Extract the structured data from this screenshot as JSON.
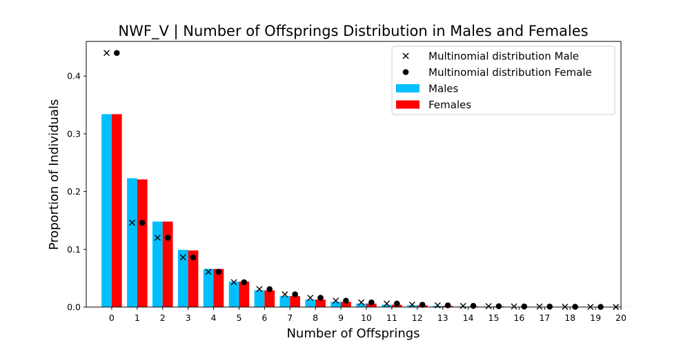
{
  "chart_data": {
    "type": "bar",
    "title": "NWF_V | Number of Offsprings Distribution in Males and Females",
    "xlabel": "Number of Offsprings",
    "ylabel": "Proportion of Individuals",
    "x_ticks": [
      "0",
      "1",
      "2",
      "3",
      "4",
      "5",
      "6",
      "7",
      "8",
      "9",
      "10",
      "11",
      "12",
      "13",
      "14",
      "15",
      "16",
      "17",
      "18",
      "19",
      "20"
    ],
    "y_ticks": [
      "0.0",
      "0.1",
      "0.2",
      "0.3",
      "0.4"
    ],
    "xlim": [
      -1,
      20
    ],
    "ylim": [
      0,
      0.46
    ],
    "legend_position": "upper-right",
    "series": [
      {
        "name": "Males",
        "kind": "bar",
        "color": "#00bfff",
        "x": [
          0,
          1,
          2,
          3,
          4,
          5,
          6,
          7,
          8,
          9,
          10,
          11,
          12,
          13,
          14,
          15,
          16,
          17,
          18,
          19,
          20
        ],
        "values": [
          0.334,
          0.223,
          0.148,
          0.099,
          0.066,
          0.044,
          0.029,
          0.019,
          0.013,
          0.009,
          0.006,
          0.004,
          0.003,
          0.002,
          0.001,
          0.001,
          0.0005,
          0.0004,
          0.0003,
          0.0002,
          0.0001
        ]
      },
      {
        "name": "Females",
        "kind": "bar",
        "color": "#ff0000",
        "x": [
          0,
          1,
          2,
          3,
          4,
          5,
          6,
          7,
          8,
          9,
          10,
          11,
          12,
          13,
          14,
          15,
          16,
          17,
          18,
          19,
          20
        ],
        "values": [
          0.334,
          0.221,
          0.148,
          0.098,
          0.066,
          0.044,
          0.029,
          0.019,
          0.013,
          0.009,
          0.006,
          0.004,
          0.003,
          0.002,
          0.001,
          0.001,
          0.0005,
          0.0004,
          0.0003,
          0.0002,
          0.0001
        ]
      },
      {
        "name": "Multinomial distribution Male",
        "kind": "marker-x",
        "color": "#000000",
        "x": [
          0,
          1,
          2,
          3,
          4,
          5,
          6,
          7,
          8,
          9,
          10,
          11,
          12,
          13,
          14,
          15,
          16,
          17,
          18,
          19,
          20
        ],
        "values": [
          0.44,
          0.146,
          0.12,
          0.086,
          0.061,
          0.043,
          0.031,
          0.022,
          0.016,
          0.011,
          0.008,
          0.006,
          0.004,
          0.003,
          0.002,
          0.0015,
          0.001,
          0.0008,
          0.0005,
          0.0003,
          0.0002
        ]
      },
      {
        "name": "Multinomial distribution Female",
        "kind": "marker-dot",
        "color": "#000000",
        "x": [
          0,
          1,
          2,
          3,
          4,
          5,
          6,
          7,
          8,
          9,
          10,
          11,
          12,
          13,
          14,
          15,
          16,
          17,
          18,
          19
        ],
        "values": [
          0.44,
          0.146,
          0.12,
          0.086,
          0.061,
          0.043,
          0.031,
          0.022,
          0.016,
          0.011,
          0.008,
          0.006,
          0.004,
          0.003,
          0.002,
          0.0015,
          0.001,
          0.0008,
          0.0005,
          0.0003
        ]
      }
    ],
    "legend_order": [
      "Multinomial distribution Male",
      "Multinomial distribution Female",
      "Males",
      "Females"
    ]
  }
}
